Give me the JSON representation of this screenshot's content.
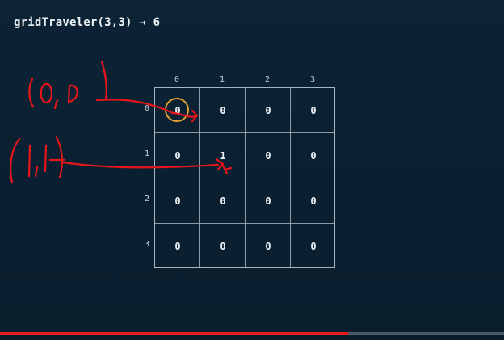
{
  "title": "gridTraveler(3,3) → 6",
  "grid": {
    "col_labels": [
      "0",
      "1",
      "2",
      "3"
    ],
    "row_labels": [
      "0",
      "1",
      "2",
      "3"
    ],
    "cells": [
      [
        "0",
        "0",
        "0",
        "0"
      ],
      [
        "0",
        "1",
        "0",
        "0"
      ],
      [
        "0",
        "0",
        "0",
        "0"
      ],
      [
        "0",
        "0",
        "0",
        "0"
      ]
    ],
    "highlighted_cell": [
      0,
      0
    ],
    "highlight_color": "#e0a030"
  },
  "annotations": {
    "ink_color": "#e8151b",
    "labels": [
      "(0,0)",
      "(1,1)"
    ]
  },
  "progress": {
    "percent": 69,
    "color": "#e51c1c"
  }
}
